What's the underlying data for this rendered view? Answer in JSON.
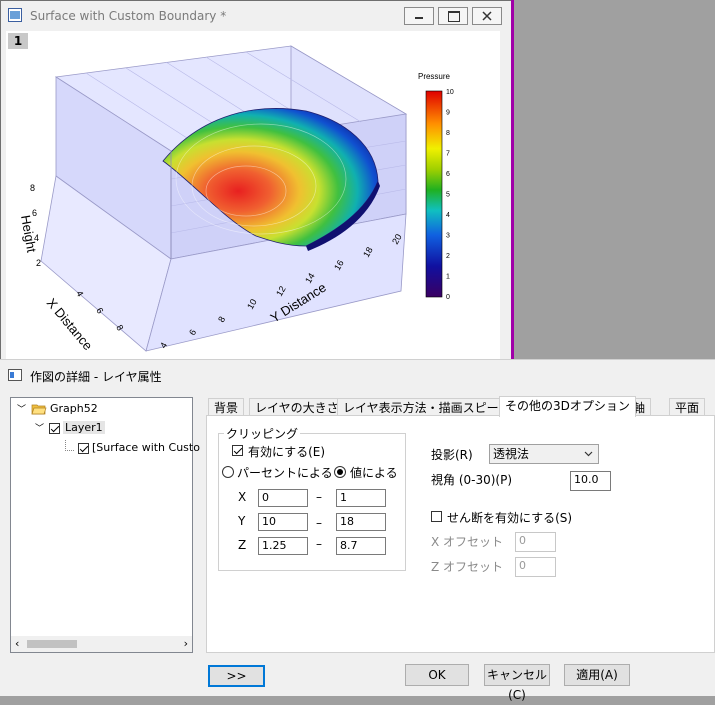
{
  "graph_window": {
    "title": "Surface with Custom Boundary *",
    "layer_number": "1",
    "legend_title": "Pressure",
    "legend_ticks": [
      "10",
      "9",
      "8",
      "7",
      "6",
      "5",
      "4",
      "3",
      "2",
      "1",
      "0"
    ],
    "z_axis_label": "Height",
    "z_ticks": [
      "8",
      "6",
      "4",
      "2"
    ],
    "x_axis_label": "X Distance",
    "x_ticks": [
      "4",
      "6",
      "8"
    ],
    "y_axis_label": "Y Distance",
    "y_ticks": [
      "4",
      "6",
      "8",
      "10",
      "12",
      "14",
      "16",
      "18",
      "20"
    ]
  },
  "dialog": {
    "title": "作図の詳細 - レイヤ属性",
    "tree": [
      {
        "label": "Graph52"
      },
      {
        "label": "Layer1"
      },
      {
        "label": "[Surface with Custo"
      }
    ],
    "tabs": [
      "背景",
      "レイヤの大きさ",
      "レイヤ表示方法・描画スピード",
      "その他の3Dオプション",
      "軸",
      "平面"
    ],
    "clipping": {
      "group_label": "クリッピング",
      "enable_label": "有効にする(E)",
      "by_percent_label": "パーセントによる",
      "by_value_label": "値による",
      "dash": "–",
      "rows": [
        {
          "axis": "X",
          "from": "0",
          "to": "1"
        },
        {
          "axis": "Y",
          "from": "10",
          "to": "18"
        },
        {
          "axis": "Z",
          "from": "1.25",
          "to": "8.7"
        }
      ]
    },
    "projection": {
      "label": "投影(R)",
      "value": "透視法"
    },
    "view_angle": {
      "label": "視角 (0-30)(P)",
      "value": "10.0"
    },
    "shear": {
      "label": "せん断を有効にする(S)",
      "x_offset_label": "X オフセット",
      "x_offset_value": "0",
      "z_offset_label": "Z オフセット",
      "z_offset_value": "0"
    },
    "buttons": {
      "expand": ">>",
      "ok": "OK",
      "cancel": "キャンセル(C)",
      "apply": "適用(A)"
    }
  },
  "colors": {
    "magenta_border": "#a000a8",
    "box_fill": "#dadcff",
    "focus_blue": "#0078d7"
  }
}
